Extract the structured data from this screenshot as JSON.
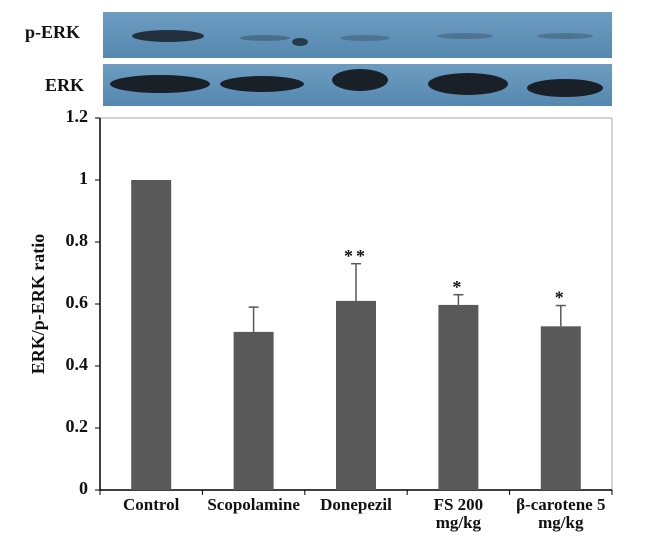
{
  "chart_data": {
    "type": "bar",
    "blot_labels": [
      "p-ERK",
      "ERK"
    ],
    "ylabel": "ERK/p-ERK ratio",
    "categories": [
      "Control",
      "Scopolamine",
      "Donepezil",
      "FS 200\nmg/kg",
      "β-carotene 5\nmg/kg"
    ],
    "values": [
      1.0,
      0.51,
      0.61,
      0.597,
      0.528
    ],
    "errors": [
      null,
      0.08,
      0.12,
      0.033,
      0.067
    ],
    "significance": [
      null,
      null,
      "**",
      "*",
      "*"
    ],
    "color": "#595959",
    "ylim": [
      0,
      1.2
    ],
    "yticks": [
      0,
      0.2,
      0.4,
      0.6,
      0.8,
      1,
      1.2
    ]
  }
}
